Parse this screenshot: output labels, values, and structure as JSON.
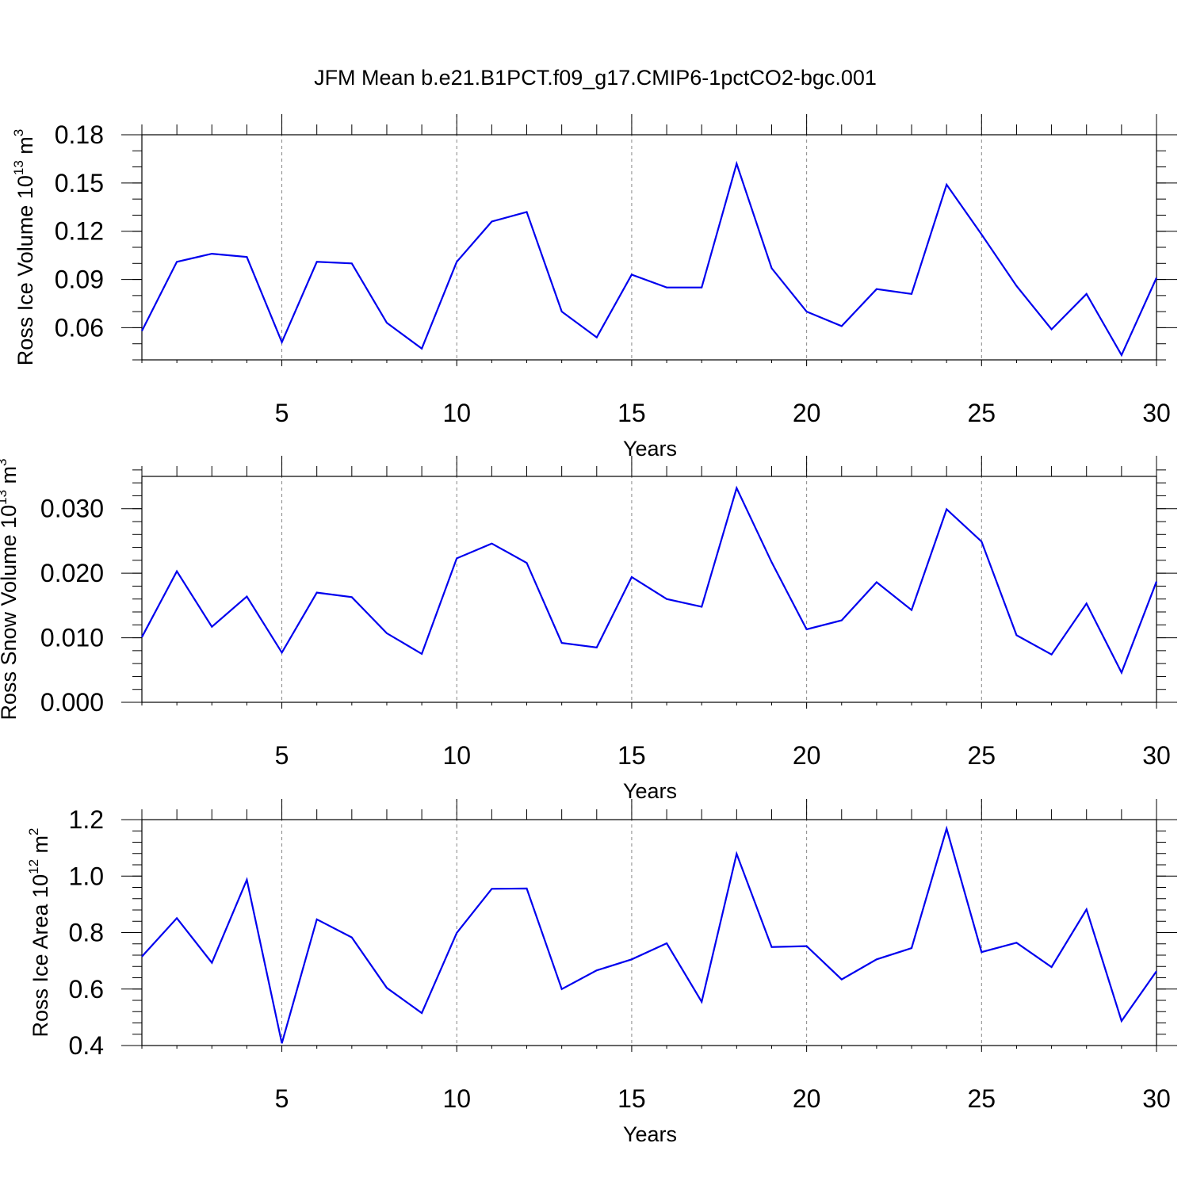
{
  "title": "JFM Mean b.e21.B1PCT.f09_g17.CMIP6-1pctCO2-bgc.001",
  "colors": {
    "series": "#0000ee",
    "grid": "#888888",
    "axis": "#000000"
  },
  "chart_data": [
    {
      "type": "line",
      "ylabel": {
        "text": "Ross Ice Volume 10",
        "sup": "13",
        "unit": " m",
        "unit_sup": "3"
      },
      "xlabel": "Years",
      "xlim": [
        1,
        30
      ],
      "ylim": [
        0.04,
        0.18
      ],
      "x_ticks": [
        5,
        10,
        15,
        20,
        25,
        30
      ],
      "y_ticks": [
        0.06,
        0.09,
        0.12,
        0.15,
        0.18
      ],
      "y_tick_labels": [
        "0.06",
        "0.09",
        "0.12",
        "0.15",
        "0.18"
      ],
      "y_minor_step": 0.01,
      "vgrid": [
        5,
        10,
        15,
        20,
        25
      ],
      "x": [
        1,
        2,
        3,
        4,
        5,
        6,
        7,
        8,
        9,
        10,
        11,
        12,
        13,
        14,
        15,
        16,
        17,
        18,
        19,
        20,
        21,
        22,
        23,
        24,
        25,
        26,
        27,
        28,
        29,
        30
      ],
      "values": [
        0.058,
        0.101,
        0.106,
        0.104,
        0.051,
        0.101,
        0.1,
        0.063,
        0.047,
        0.101,
        0.126,
        0.132,
        0.07,
        0.054,
        0.093,
        0.085,
        0.085,
        0.162,
        0.097,
        0.07,
        0.061,
        0.084,
        0.081,
        0.149,
        0.118,
        0.086,
        0.059,
        0.081,
        0.043,
        0.091
      ]
    },
    {
      "type": "line",
      "ylabel": {
        "text": "Ross Snow Volume 10",
        "sup": "13",
        "unit": " m",
        "unit_sup": "3"
      },
      "xlabel": "Years",
      "xlim": [
        1,
        30
      ],
      "ylim": [
        0.0,
        0.035
      ],
      "x_ticks": [
        5,
        10,
        15,
        20,
        25,
        30
      ],
      "y_ticks": [
        0.0,
        0.01,
        0.02,
        0.03
      ],
      "y_tick_labels": [
        "0.000",
        "0.010",
        "0.020",
        "0.030"
      ],
      "y_minor_step": 0.002,
      "vgrid": [
        5,
        10,
        15,
        20,
        25
      ],
      "x": [
        1,
        2,
        3,
        4,
        5,
        6,
        7,
        8,
        9,
        10,
        11,
        12,
        13,
        14,
        15,
        16,
        17,
        18,
        19,
        20,
        21,
        22,
        23,
        24,
        25,
        26,
        27,
        28,
        29,
        30
      ],
      "values": [
        0.0101,
        0.0203,
        0.0117,
        0.0164,
        0.0077,
        0.017,
        0.0163,
        0.0107,
        0.0075,
        0.0223,
        0.0246,
        0.0216,
        0.0092,
        0.0085,
        0.0194,
        0.016,
        0.0148,
        0.0332,
        0.0217,
        0.0113,
        0.0127,
        0.0186,
        0.0143,
        0.0299,
        0.0249,
        0.0104,
        0.0074,
        0.0153,
        0.0046,
        0.0187
      ]
    },
    {
      "type": "line",
      "ylabel": {
        "text": "Ross Ice Area 10",
        "sup": "12",
        "unit": " m",
        "unit_sup": "2"
      },
      "xlabel": "Years",
      "xlim": [
        1,
        30
      ],
      "ylim": [
        0.4,
        1.2
      ],
      "x_ticks": [
        5,
        10,
        15,
        20,
        25,
        30
      ],
      "y_ticks": [
        0.4,
        0.6,
        0.8,
        1.0,
        1.2
      ],
      "y_tick_labels": [
        "0.4",
        "0.6",
        "0.8",
        "1.0",
        "1.2"
      ],
      "y_minor_step": 0.04,
      "vgrid": [
        5,
        10,
        15,
        20,
        25
      ],
      "x": [
        1,
        2,
        3,
        4,
        5,
        6,
        7,
        8,
        9,
        10,
        11,
        12,
        13,
        14,
        15,
        16,
        17,
        18,
        19,
        20,
        21,
        22,
        23,
        24,
        25,
        26,
        27,
        28,
        29,
        30
      ],
      "values": [
        0.715,
        0.851,
        0.693,
        0.987,
        0.408,
        0.847,
        0.783,
        0.604,
        0.515,
        0.799,
        0.955,
        0.956,
        0.6,
        0.666,
        0.705,
        0.762,
        0.555,
        1.079,
        0.749,
        0.752,
        0.634,
        0.705,
        0.745,
        1.168,
        0.731,
        0.764,
        0.678,
        0.882,
        0.487,
        0.663
      ]
    }
  ]
}
